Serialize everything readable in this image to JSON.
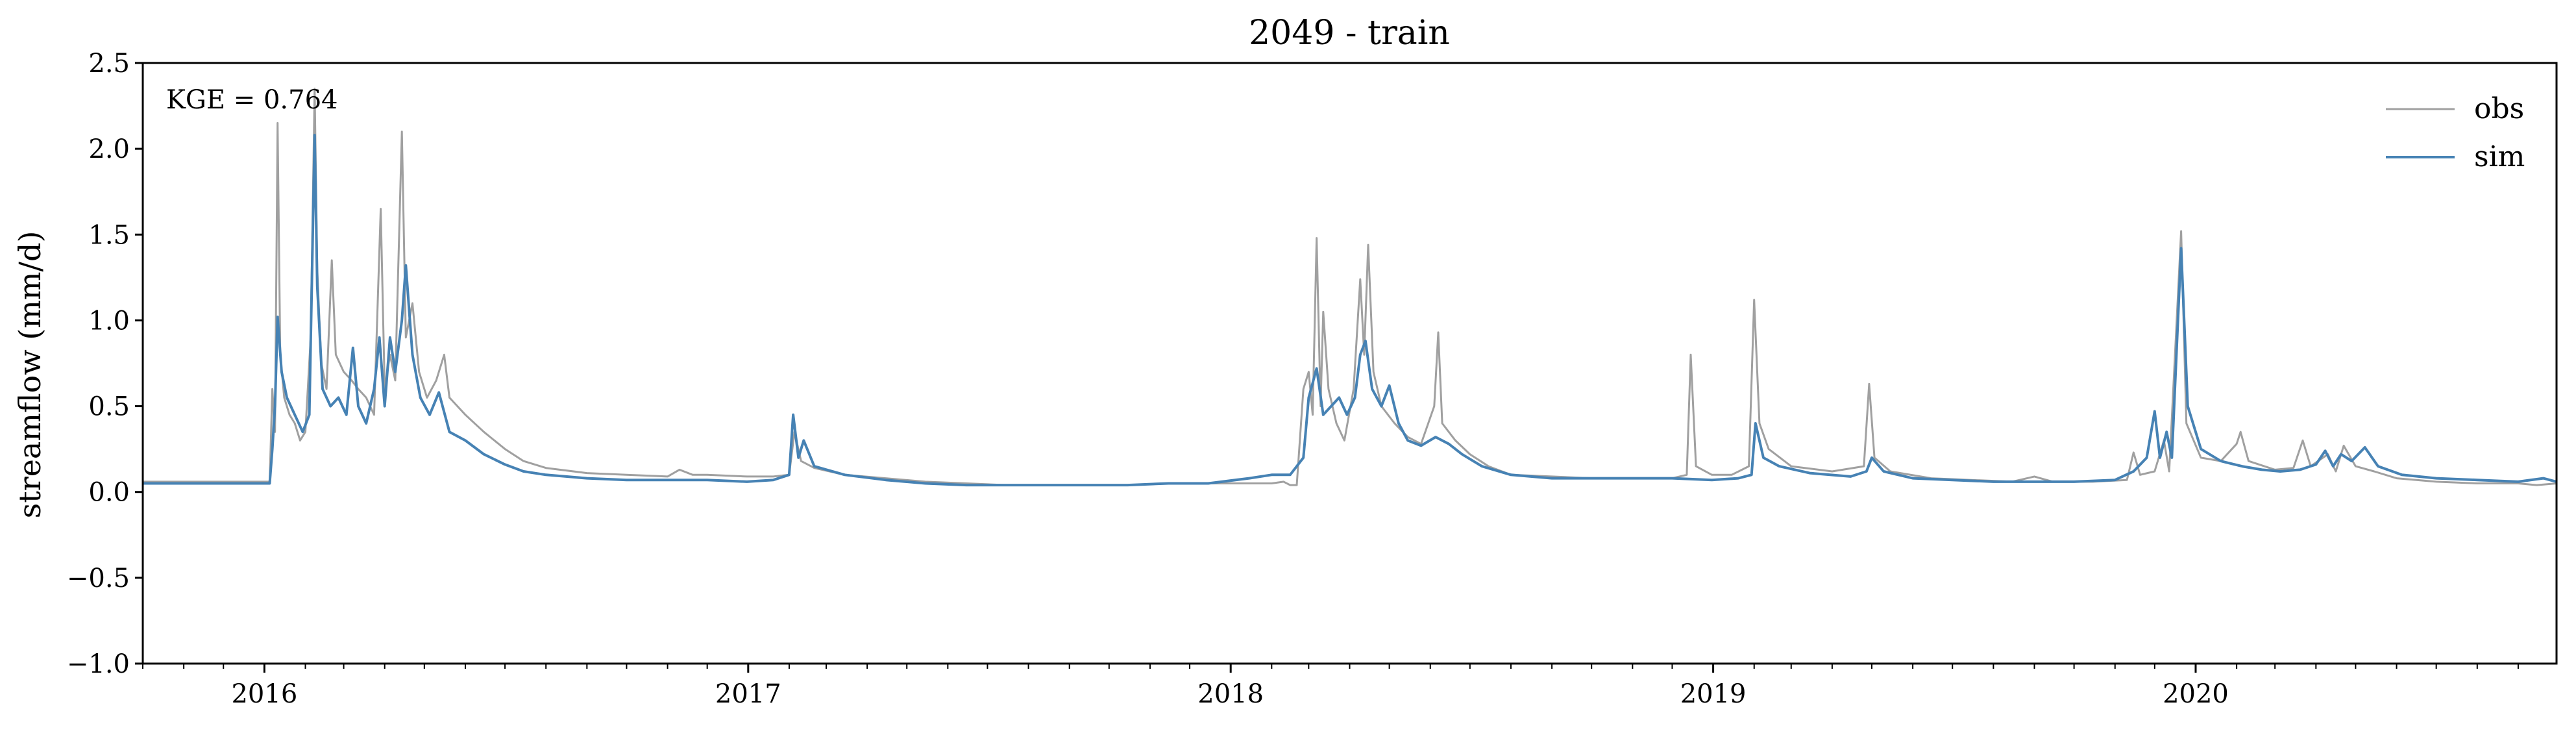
{
  "chart_data": {
    "type": "line",
    "title": "2049 - train",
    "xlabel": "",
    "ylabel": "streamflow (mm/d)",
    "xlim": [
      "2015-10-01",
      "2020-09-30"
    ],
    "ylim": [
      -1.0,
      2.5
    ],
    "yticks": [
      -1.0,
      -0.5,
      0.0,
      0.5,
      1.0,
      1.5,
      2.0,
      2.5
    ],
    "ytick_labels": [
      "−1.0",
      "−0.5",
      "0.0",
      "0.5",
      "1.0",
      "1.5",
      "2.0",
      "2.5"
    ],
    "xticks": [
      "2016-01-01",
      "2017-01-01",
      "2018-01-01",
      "2019-01-01",
      "2020-01-01"
    ],
    "xtick_labels": [
      "2016",
      "2017",
      "2018",
      "2019",
      "2020"
    ],
    "grid": false,
    "legend_position": "top-right",
    "annotation": "KGE = 0.764",
    "series": [
      {
        "name": "obs",
        "color": "#a0a0a0",
        "points": [
          [
            "2015-10-01",
            0.06
          ],
          [
            "2015-11-01",
            0.06
          ],
          [
            "2015-12-01",
            0.06
          ],
          [
            "2016-01-05",
            0.06
          ],
          [
            "2016-01-07",
            0.6
          ],
          [
            "2016-01-09",
            0.35
          ],
          [
            "2016-01-11",
            2.15
          ],
          [
            "2016-01-13",
            0.8
          ],
          [
            "2016-01-16",
            0.55
          ],
          [
            "2016-01-20",
            0.45
          ],
          [
            "2016-01-24",
            0.4
          ],
          [
            "2016-01-28",
            0.3
          ],
          [
            "2016-02-01",
            0.35
          ],
          [
            "2016-02-05",
            0.9
          ],
          [
            "2016-02-08",
            2.35
          ],
          [
            "2016-02-10",
            1.3
          ],
          [
            "2016-02-13",
            0.75
          ],
          [
            "2016-02-17",
            0.6
          ],
          [
            "2016-02-21",
            1.35
          ],
          [
            "2016-02-24",
            0.8
          ],
          [
            "2016-03-01",
            0.7
          ],
          [
            "2016-03-07",
            0.65
          ],
          [
            "2016-03-12",
            0.6
          ],
          [
            "2016-03-18",
            0.55
          ],
          [
            "2016-03-24",
            0.45
          ],
          [
            "2016-03-29",
            1.65
          ],
          [
            "2016-04-01",
            0.6
          ],
          [
            "2016-04-05",
            0.8
          ],
          [
            "2016-04-09",
            0.65
          ],
          [
            "2016-04-14",
            2.1
          ],
          [
            "2016-04-17",
            0.9
          ],
          [
            "2016-04-22",
            1.1
          ],
          [
            "2016-04-27",
            0.7
          ],
          [
            "2016-05-03",
            0.55
          ],
          [
            "2016-05-10",
            0.65
          ],
          [
            "2016-05-16",
            0.8
          ],
          [
            "2016-05-20",
            0.55
          ],
          [
            "2016-06-01",
            0.45
          ],
          [
            "2016-06-15",
            0.35
          ],
          [
            "2016-07-01",
            0.25
          ],
          [
            "2016-07-15",
            0.18
          ],
          [
            "2016-08-01",
            0.14
          ],
          [
            "2016-09-01",
            0.11
          ],
          [
            "2016-10-01",
            0.1
          ],
          [
            "2016-11-01",
            0.09
          ],
          [
            "2016-11-10",
            0.13
          ],
          [
            "2016-11-20",
            0.1
          ],
          [
            "2016-12-01",
            0.1
          ],
          [
            "2016-12-31",
            0.09
          ],
          [
            "2017-01-20",
            0.09
          ],
          [
            "2017-02-01",
            0.1
          ],
          [
            "2017-02-05",
            0.35
          ],
          [
            "2017-02-10",
            0.18
          ],
          [
            "2017-02-20",
            0.14
          ],
          [
            "2017-03-15",
            0.1
          ],
          [
            "2017-04-15",
            0.08
          ],
          [
            "2017-05-15",
            0.06
          ],
          [
            "2017-06-15",
            0.05
          ],
          [
            "2017-07-15",
            0.04
          ],
          [
            "2017-08-15",
            0.04
          ],
          [
            "2017-09-15",
            0.04
          ],
          [
            "2017-10-15",
            0.04
          ],
          [
            "2017-11-15",
            0.05
          ],
          [
            "2017-12-15",
            0.05
          ],
          [
            "2018-01-15",
            0.05
          ],
          [
            "2018-02-01",
            0.05
          ],
          [
            "2018-02-10",
            0.06
          ],
          [
            "2018-02-15",
            0.04
          ],
          [
            "2018-02-20",
            0.04
          ],
          [
            "2018-02-25",
            0.6
          ],
          [
            "2018-03-01",
            0.7
          ],
          [
            "2018-03-04",
            0.45
          ],
          [
            "2018-03-07",
            1.48
          ],
          [
            "2018-03-10",
            0.5
          ],
          [
            "2018-03-12",
            1.05
          ],
          [
            "2018-03-16",
            0.6
          ],
          [
            "2018-03-22",
            0.4
          ],
          [
            "2018-03-28",
            0.3
          ],
          [
            "2018-04-04",
            0.6
          ],
          [
            "2018-04-09",
            1.24
          ],
          [
            "2018-04-12",
            0.8
          ],
          [
            "2018-04-15",
            1.44
          ],
          [
            "2018-04-19",
            0.7
          ],
          [
            "2018-04-25",
            0.5
          ],
          [
            "2018-05-05",
            0.4
          ],
          [
            "2018-05-15",
            0.32
          ],
          [
            "2018-05-25",
            0.28
          ],
          [
            "2018-06-04",
            0.5
          ],
          [
            "2018-06-07",
            0.93
          ],
          [
            "2018-06-10",
            0.4
          ],
          [
            "2018-06-20",
            0.3
          ],
          [
            "2018-07-01",
            0.22
          ],
          [
            "2018-07-15",
            0.15
          ],
          [
            "2018-08-01",
            0.1
          ],
          [
            "2018-09-01",
            0.09
          ],
          [
            "2018-10-01",
            0.08
          ],
          [
            "2018-11-01",
            0.08
          ],
          [
            "2018-12-01",
            0.08
          ],
          [
            "2018-12-12",
            0.1
          ],
          [
            "2018-12-15",
            0.8
          ],
          [
            "2018-12-19",
            0.15
          ],
          [
            "2018-12-31",
            0.1
          ],
          [
            "2019-01-15",
            0.1
          ],
          [
            "2019-01-28",
            0.15
          ],
          [
            "2019-02-01",
            1.12
          ],
          [
            "2019-02-05",
            0.4
          ],
          [
            "2019-02-12",
            0.25
          ],
          [
            "2019-03-01",
            0.15
          ],
          [
            "2019-04-01",
            0.12
          ],
          [
            "2019-04-25",
            0.15
          ],
          [
            "2019-04-29",
            0.63
          ],
          [
            "2019-05-03",
            0.2
          ],
          [
            "2019-05-15",
            0.12
          ],
          [
            "2019-06-15",
            0.08
          ],
          [
            "2019-07-15",
            0.07
          ],
          [
            "2019-08-15",
            0.06
          ],
          [
            "2019-09-01",
            0.09
          ],
          [
            "2019-09-15",
            0.06
          ],
          [
            "2019-10-15",
            0.06
          ],
          [
            "2019-11-10",
            0.07
          ],
          [
            "2019-11-15",
            0.23
          ],
          [
            "2019-11-20",
            0.1
          ],
          [
            "2019-12-01",
            0.12
          ],
          [
            "2019-12-08",
            0.3
          ],
          [
            "2019-12-12",
            0.12
          ],
          [
            "2019-12-21",
            1.52
          ],
          [
            "2019-12-25",
            0.4
          ],
          [
            "2020-01-05",
            0.2
          ],
          [
            "2020-01-20",
            0.18
          ],
          [
            "2020-02-01",
            0.28
          ],
          [
            "2020-02-04",
            0.35
          ],
          [
            "2020-02-10",
            0.18
          ],
          [
            "2020-03-01",
            0.13
          ],
          [
            "2020-03-15",
            0.14
          ],
          [
            "2020-03-22",
            0.3
          ],
          [
            "2020-03-28",
            0.15
          ],
          [
            "2020-04-10",
            0.22
          ],
          [
            "2020-04-16",
            0.12
          ],
          [
            "2020-04-22",
            0.27
          ],
          [
            "2020-05-01",
            0.15
          ],
          [
            "2020-05-15",
            0.12
          ],
          [
            "2020-06-01",
            0.08
          ],
          [
            "2020-07-01",
            0.06
          ],
          [
            "2020-08-01",
            0.05
          ],
          [
            "2020-09-01",
            0.05
          ],
          [
            "2020-09-15",
            0.04
          ],
          [
            "2020-09-30",
            0.05
          ]
        ]
      },
      {
        "name": "sim",
        "color": "#4682b4",
        "points": [
          [
            "2015-10-01",
            0.05
          ],
          [
            "2015-11-01",
            0.05
          ],
          [
            "2015-12-01",
            0.05
          ],
          [
            "2016-01-05",
            0.05
          ],
          [
            "2016-01-07",
            0.25
          ],
          [
            "2016-01-09",
            0.5
          ],
          [
            "2016-01-11",
            1.02
          ],
          [
            "2016-01-14",
            0.7
          ],
          [
            "2016-01-18",
            0.55
          ],
          [
            "2016-01-24",
            0.45
          ],
          [
            "2016-01-30",
            0.35
          ],
          [
            "2016-02-04",
            0.45
          ],
          [
            "2016-02-08",
            2.08
          ],
          [
            "2016-02-10",
            1.2
          ],
          [
            "2016-02-14",
            0.6
          ],
          [
            "2016-02-20",
            0.5
          ],
          [
            "2016-02-26",
            0.55
          ],
          [
            "2016-03-03",
            0.45
          ],
          [
            "2016-03-08",
            0.84
          ],
          [
            "2016-03-12",
            0.5
          ],
          [
            "2016-03-18",
            0.4
          ],
          [
            "2016-03-24",
            0.6
          ],
          [
            "2016-03-28",
            0.9
          ],
          [
            "2016-04-01",
            0.5
          ],
          [
            "2016-04-05",
            0.9
          ],
          [
            "2016-04-09",
            0.7
          ],
          [
            "2016-04-14",
            1.0
          ],
          [
            "2016-04-17",
            1.32
          ],
          [
            "2016-04-22",
            0.8
          ],
          [
            "2016-04-28",
            0.55
          ],
          [
            "2016-05-05",
            0.45
          ],
          [
            "2016-05-12",
            0.58
          ],
          [
            "2016-05-20",
            0.35
          ],
          [
            "2016-06-01",
            0.3
          ],
          [
            "2016-06-15",
            0.22
          ],
          [
            "2016-07-01",
            0.16
          ],
          [
            "2016-07-15",
            0.12
          ],
          [
            "2016-08-01",
            0.1
          ],
          [
            "2016-09-01",
            0.08
          ],
          [
            "2016-10-01",
            0.07
          ],
          [
            "2016-11-01",
            0.07
          ],
          [
            "2016-12-01",
            0.07
          ],
          [
            "2016-12-31",
            0.06
          ],
          [
            "2017-01-20",
            0.07
          ],
          [
            "2017-02-01",
            0.1
          ],
          [
            "2017-02-04",
            0.45
          ],
          [
            "2017-02-08",
            0.2
          ],
          [
            "2017-02-12",
            0.3
          ],
          [
            "2017-02-20",
            0.15
          ],
          [
            "2017-03-15",
            0.1
          ],
          [
            "2017-04-15",
            0.07
          ],
          [
            "2017-05-15",
            0.05
          ],
          [
            "2017-06-15",
            0.04
          ],
          [
            "2017-07-15",
            0.04
          ],
          [
            "2017-08-15",
            0.04
          ],
          [
            "2017-09-15",
            0.04
          ],
          [
            "2017-10-15",
            0.04
          ],
          [
            "2017-11-15",
            0.05
          ],
          [
            "2017-12-15",
            0.05
          ],
          [
            "2018-01-15",
            0.08
          ],
          [
            "2018-02-01",
            0.1
          ],
          [
            "2018-02-15",
            0.1
          ],
          [
            "2018-02-25",
            0.2
          ],
          [
            "2018-03-01",
            0.55
          ],
          [
            "2018-03-07",
            0.72
          ],
          [
            "2018-03-12",
            0.45
          ],
          [
            "2018-03-18",
            0.5
          ],
          [
            "2018-03-24",
            0.55
          ],
          [
            "2018-03-30",
            0.45
          ],
          [
            "2018-04-05",
            0.55
          ],
          [
            "2018-04-09",
            0.8
          ],
          [
            "2018-04-13",
            0.88
          ],
          [
            "2018-04-18",
            0.6
          ],
          [
            "2018-04-25",
            0.5
          ],
          [
            "2018-05-01",
            0.62
          ],
          [
            "2018-05-08",
            0.4
          ],
          [
            "2018-05-15",
            0.3
          ],
          [
            "2018-05-25",
            0.27
          ],
          [
            "2018-06-05",
            0.32
          ],
          [
            "2018-06-15",
            0.28
          ],
          [
            "2018-06-25",
            0.22
          ],
          [
            "2018-07-10",
            0.15
          ],
          [
            "2018-08-01",
            0.1
          ],
          [
            "2018-09-01",
            0.08
          ],
          [
            "2018-10-01",
            0.08
          ],
          [
            "2018-11-01",
            0.08
          ],
          [
            "2018-12-01",
            0.08
          ],
          [
            "2018-12-31",
            0.07
          ],
          [
            "2019-01-20",
            0.08
          ],
          [
            "2019-01-30",
            0.1
          ],
          [
            "2019-02-02",
            0.4
          ],
          [
            "2019-02-08",
            0.2
          ],
          [
            "2019-02-20",
            0.15
          ],
          [
            "2019-03-15",
            0.11
          ],
          [
            "2019-04-15",
            0.09
          ],
          [
            "2019-04-27",
            0.12
          ],
          [
            "2019-05-01",
            0.2
          ],
          [
            "2019-05-10",
            0.12
          ],
          [
            "2019-06-01",
            0.08
          ],
          [
            "2019-07-01",
            0.07
          ],
          [
            "2019-08-01",
            0.06
          ],
          [
            "2019-09-01",
            0.06
          ],
          [
            "2019-10-01",
            0.06
          ],
          [
            "2019-11-01",
            0.07
          ],
          [
            "2019-11-15",
            0.12
          ],
          [
            "2019-11-25",
            0.2
          ],
          [
            "2019-12-01",
            0.47
          ],
          [
            "2019-12-05",
            0.2
          ],
          [
            "2019-12-10",
            0.35
          ],
          [
            "2019-12-14",
            0.2
          ],
          [
            "2019-12-21",
            1.42
          ],
          [
            "2019-12-26",
            0.5
          ],
          [
            "2020-01-05",
            0.25
          ],
          [
            "2020-01-20",
            0.18
          ],
          [
            "2020-02-05",
            0.15
          ],
          [
            "2020-02-20",
            0.13
          ],
          [
            "2020-03-05",
            0.12
          ],
          [
            "2020-03-20",
            0.13
          ],
          [
            "2020-04-01",
            0.16
          ],
          [
            "2020-04-08",
            0.24
          ],
          [
            "2020-04-14",
            0.15
          ],
          [
            "2020-04-20",
            0.22
          ],
          [
            "2020-04-28",
            0.18
          ],
          [
            "2020-05-08",
            0.26
          ],
          [
            "2020-05-18",
            0.15
          ],
          [
            "2020-06-05",
            0.1
          ],
          [
            "2020-07-01",
            0.08
          ],
          [
            "2020-08-01",
            0.07
          ],
          [
            "2020-09-01",
            0.06
          ],
          [
            "2020-09-20",
            0.08
          ],
          [
            "2020-09-30",
            0.06
          ]
        ]
      }
    ]
  }
}
